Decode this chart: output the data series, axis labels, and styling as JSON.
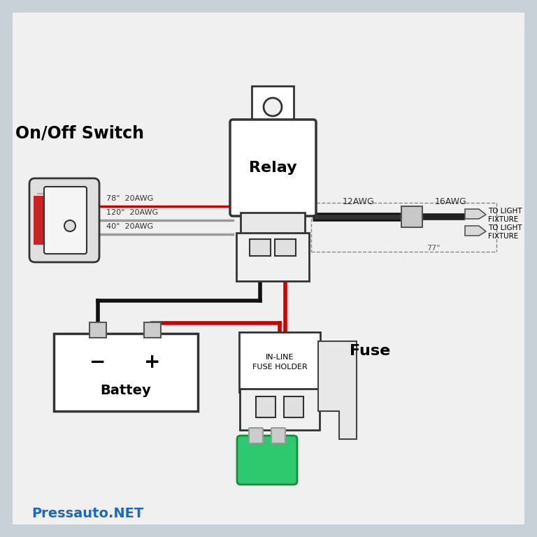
{
  "background_color": "#c8d0d8",
  "white_bg": "#f0f0f0",
  "text_pressauto": "Pressauto.NET",
  "text_pressauto_color": "#1a6bbf",
  "label_switch": "On/Off Switch",
  "label_relay": "Relay",
  "label_fuse": "Fuse",
  "label_battery": "Battey",
  "label_inline_fuse": "IN-LINE\nFUSE HOLDER",
  "label_to_light1": "TO LIGHT\nFIXTURE",
  "label_to_light2": "TO LIGHT\nFIXTURE",
  "label_12awg": "12AWG",
  "label_16awg": "16AWG",
  "label_77": "77\"",
  "label_78": "78\"  20AWG",
  "label_120": "120\"  20AWG",
  "label_40": "40\"  20AWG",
  "wire_black": "#111111",
  "wire_red": "#cc0000",
  "wire_gray": "#999999",
  "wire_dark": "#333333",
  "fuse_green": "#2ec86e",
  "comp_fill": "#ffffff",
  "comp_edge": "#333333"
}
